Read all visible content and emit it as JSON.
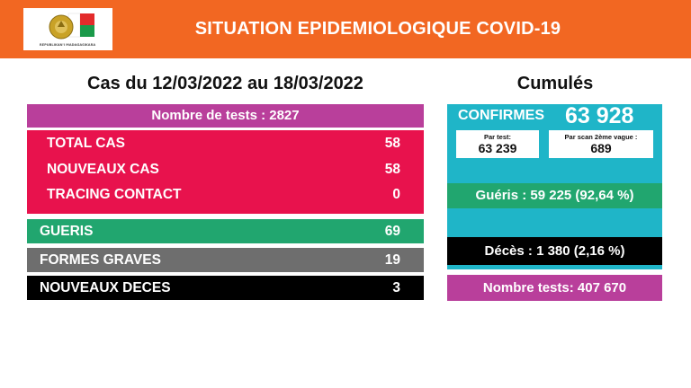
{
  "header": {
    "title": "SITUATION EPIDEMIOLOGIQUE COVID-19",
    "logo_icon": "madagascar-emblem-logo",
    "logo_text": "REPUBLIKAN'I MADAGASIKARA"
  },
  "period": {
    "title": "Cas du 12/03/2022 au 18/03/2022",
    "tests_label": "Nombre de tests : 2827",
    "rows": [
      {
        "label": "TOTAL CAS",
        "value": "58"
      },
      {
        "label": "NOUVEAUX CAS",
        "value": "58"
      },
      {
        "label": "TRACING CONTACT",
        "value": "0"
      }
    ],
    "gueris": {
      "label": "GUERIS",
      "value": "69"
    },
    "formes_graves": {
      "label": "FORMES GRAVES",
      "value": "19"
    },
    "nouveaux_deces": {
      "label": "NOUVEAUX DECES",
      "value": "3"
    }
  },
  "cumul": {
    "title": "Cumulés",
    "confirmes_label": "CONFIRMES",
    "confirmes_value": "63 928",
    "par_test_label": "Par test:",
    "par_test_value": "63 239",
    "par_scan_label": "Par scan 2ème vague :",
    "par_scan_value": "689",
    "gueris": "Guéris : 59 225 (92,64 %)",
    "deces": "Décès : 1 380 (2,16 %)",
    "tests": "Nombre tests: 407 670"
  },
  "colors": {
    "header_orange": "#f26722",
    "magenta": "#b93f9b",
    "red": "#e8124d",
    "green": "#21a66f",
    "grey": "#6e6e6e",
    "cyan": "#1fb5c8"
  }
}
